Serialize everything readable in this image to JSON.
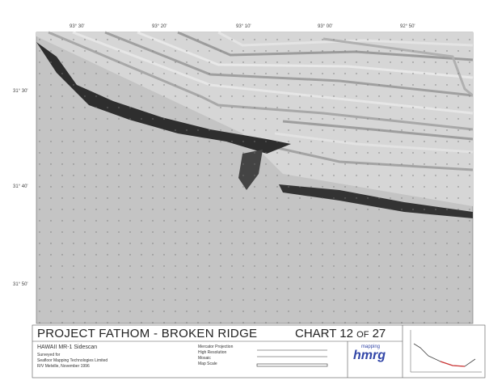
{
  "map": {
    "top_labels": [
      "93° 30'",
      "93° 20'",
      "93° 10'",
      "93° 00'",
      "92° 50'"
    ],
    "left_labels": [
      "31° 30'",
      "31° 40'",
      "31° 50'"
    ],
    "title": "PROJECT FATHOM - BROKEN RIDGE",
    "chart_number": "CHART 12 of 27",
    "left_info": [
      "HAWAII MR-1 Sidescan",
      "Surveyed for",
      "Seafloor Mapping Technologies Limited",
      "R/V Melville, November 1996"
    ],
    "mid_info": [
      "Mercator Projection",
      "High Resolution",
      "Mosaic",
      "Map Scale"
    ],
    "logo_top": "mapping",
    "logo_main": "hmrg"
  }
}
